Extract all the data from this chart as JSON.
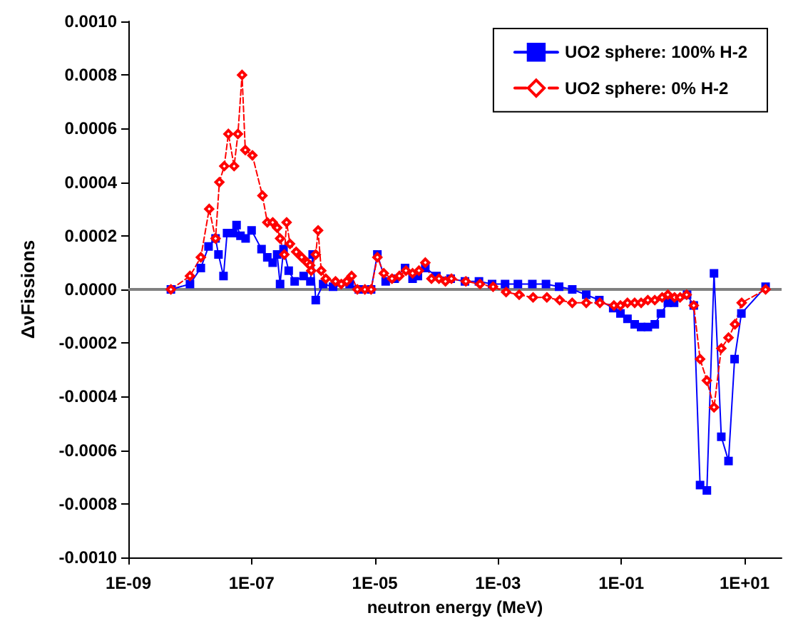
{
  "chart_data": {
    "type": "line",
    "ylabel": "ΔνFissions",
    "xlabel": "neutron energy (MeV)",
    "log": "x",
    "xlim": [
      1e-09,
      40
    ],
    "xticks": [
      {
        "value": 1e-09,
        "label": "1E-09"
      },
      {
        "value": 1e-07,
        "label": "1E-07"
      },
      {
        "value": 1e-05,
        "label": "1E-05"
      },
      {
        "value": 0.001,
        "label": "1E-03"
      },
      {
        "value": 0.1,
        "label": "1E-01"
      },
      {
        "value": 10,
        "label": "1E+01"
      }
    ],
    "ylim": [
      -0.001,
      0.001
    ],
    "yticks": [
      {
        "value": -0.001,
        "label": "-0.0010"
      },
      {
        "value": -0.0008,
        "label": "-0.0008"
      },
      {
        "value": -0.0006,
        "label": "-0.0006"
      },
      {
        "value": -0.0004,
        "label": "-0.0004"
      },
      {
        "value": -0.0002,
        "label": "-0.0002"
      },
      {
        "value": 0,
        "label": "0.0000"
      },
      {
        "value": 0.0002,
        "label": "0.0002"
      },
      {
        "value": 0.0004,
        "label": "0.0004"
      },
      {
        "value": 0.0006,
        "label": "0.0006"
      },
      {
        "value": 0.0008,
        "label": "0.0008"
      },
      {
        "value": 0.001,
        "label": "0.0010"
      }
    ],
    "grid": false,
    "legend": "top right",
    "ref_lines": [
      {
        "axis": "y",
        "value": 0,
        "color": "#808080"
      }
    ],
    "series": [
      {
        "name": "UO2 sphere: 100% H-2",
        "color": "#0000ff",
        "marker": "square",
        "line_style": "solid",
        "x": [
          4.9e-09,
          1e-08,
          1.5e-08,
          2e-08,
          2.6e-08,
          2.9e-08,
          3.5e-08,
          4e-08,
          5e-08,
          5.7e-08,
          6.6e-08,
          8e-08,
          1e-07,
          1.45e-07,
          1.8e-07,
          2.2e-07,
          2.6e-07,
          2.9e-07,
          3.3e-07,
          4e-07,
          5e-07,
          7e-07,
          9e-07,
          9.8e-07,
          1.1e-06,
          1.45e-06,
          2.1e-06,
          3.9e-06,
          5.5e-06,
          8.7e-06,
          1.1e-05,
          1.5e-05,
          2.1e-05,
          3.1e-05,
          4.1e-05,
          5e-05,
          6.6e-05,
          0.0001,
          0.00017,
          0.00029,
          0.00049,
          0.0008,
          0.0013,
          0.0021,
          0.0036,
          0.006,
          0.0098,
          0.016,
          0.027,
          0.044,
          0.074,
          0.097,
          0.126,
          0.165,
          0.21,
          0.27,
          0.35,
          0.44,
          0.57,
          0.72,
          1.17,
          1.5,
          1.9,
          2.45,
          3.2,
          4.2,
          5.5,
          6.9,
          8.9,
          22
        ],
        "values": [
          0,
          2e-05,
          8e-05,
          0.00016,
          0.00019,
          0.00013,
          5e-05,
          0.00021,
          0.00021,
          0.00024,
          0.0002,
          0.00019,
          0.00022,
          0.00015,
          0.00012,
          0.0001,
          0.00013,
          2e-05,
          0.00015,
          7e-05,
          3e-05,
          5e-05,
          3e-05,
          0.00013,
          -4e-05,
          2e-05,
          1e-05,
          2e-05,
          0,
          0,
          0.00013,
          3e-05,
          4e-05,
          8e-05,
          4e-05,
          5e-05,
          8e-05,
          5e-05,
          4e-05,
          3e-05,
          3e-05,
          2e-05,
          2e-05,
          2e-05,
          2e-05,
          2e-05,
          1e-05,
          0,
          -2e-05,
          -4e-05,
          -7e-05,
          -9e-05,
          -0.00011,
          -0.00013,
          -0.00014,
          -0.00014,
          -0.00013,
          -9e-05,
          -5e-05,
          -5e-05,
          -2e-05,
          -6e-05,
          -0.00073,
          -0.00075,
          6e-05,
          -0.00055,
          -0.00064,
          -0.00026,
          -9e-05,
          1e-05
        ]
      },
      {
        "name": "UO2 sphere: 0% H-2",
        "color": "#ff0000",
        "marker": "diamond",
        "line_style": "dashed",
        "x": [
          4.9e-09,
          1e-08,
          1.5e-08,
          2.05e-08,
          2.6e-08,
          3e-08,
          3.6e-08,
          4.2e-08,
          5.2e-08,
          6e-08,
          7e-08,
          7.9e-08,
          1.03e-07,
          1.5e-07,
          1.8e-07,
          2.2e-07,
          2.6e-07,
          2.9e-07,
          3.4e-07,
          3.7e-07,
          4.2e-07,
          5.3e-07,
          6.5e-07,
          8e-07,
          8.9e-07,
          9.3e-07,
          1.1e-06,
          1.2e-06,
          1.35e-06,
          1.6e-06,
          2.3e-06,
          2.85e-06,
          3.5e-06,
          4.2e-06,
          5.2e-06,
          6.9e-06,
          8.7e-06,
          1.1e-05,
          1.4e-05,
          1.9e-05,
          2.5e-05,
          3.2e-05,
          4.1e-05,
          5.2e-05,
          6.6e-05,
          8.3e-05,
          0.00011,
          0.00014,
          0.000175,
          0.0003,
          0.00051,
          0.00083,
          0.00135,
          0.0022,
          0.0037,
          0.0062,
          0.01,
          0.016,
          0.027,
          0.045,
          0.076,
          0.097,
          0.126,
          0.165,
          0.21,
          0.27,
          0.35,
          0.46,
          0.57,
          0.73,
          0.9,
          1.15,
          1.5,
          1.9,
          2.45,
          3.2,
          4.2,
          5.5,
          7,
          9,
          22
        ],
        "values": [
          0,
          5e-05,
          0.00012,
          0.0003,
          0.00019,
          0.0004,
          0.00046,
          0.00058,
          0.00046,
          0.00058,
          0.0008,
          0.00052,
          0.0005,
          0.00035,
          0.00025,
          0.00025,
          0.00023,
          0.00019,
          0.00013,
          0.00025,
          0.00017,
          0.00014,
          0.00012,
          0.0001,
          9e-05,
          7e-05,
          0.00013,
          0.00022,
          7e-05,
          4e-05,
          3e-05,
          2e-05,
          3e-05,
          5e-05,
          0,
          0,
          0,
          0.00012,
          6e-05,
          4e-05,
          5e-05,
          7e-05,
          6e-05,
          7e-05,
          0.0001,
          4e-05,
          4e-05,
          3e-05,
          4e-05,
          3e-05,
          2e-05,
          1e-05,
          -1e-05,
          -2e-05,
          -3e-05,
          -3e-05,
          -4e-05,
          -5e-05,
          -5e-05,
          -5e-05,
          -6e-05,
          -6e-05,
          -5e-05,
          -5e-05,
          -5e-05,
          -4e-05,
          -4e-05,
          -3e-05,
          -2e-05,
          -3e-05,
          -3e-05,
          -2e-05,
          -6e-05,
          -0.00026,
          -0.00034,
          -0.00044,
          -0.00022,
          -0.00018,
          -0.00013,
          -5e-05,
          0
        ]
      }
    ]
  }
}
